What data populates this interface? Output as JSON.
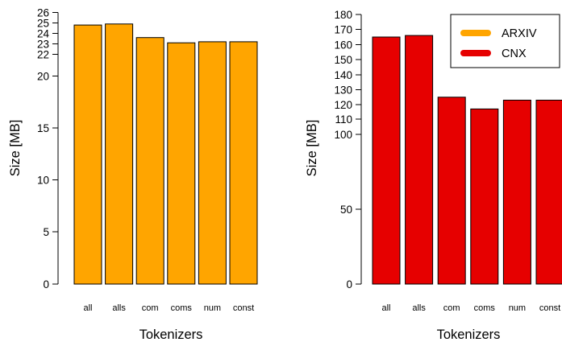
{
  "chart_data": [
    {
      "type": "bar",
      "xlabel": "Tokenizers",
      "ylabel": "Size [MB]",
      "categories": [
        "all",
        "alls",
        "com",
        "coms",
        "num",
        "const"
      ],
      "values": [
        24.8,
        24.9,
        23.6,
        23.1,
        23.2,
        23.2
      ],
      "yticks": [
        0,
        5,
        10,
        15,
        20,
        22,
        23,
        24,
        25,
        26
      ],
      "ylim": [
        0,
        26
      ],
      "bar_color": "#FFA500",
      "grid": false
    },
    {
      "type": "bar",
      "xlabel": "Tokenizers",
      "ylabel": "Size [MB]",
      "categories": [
        "all",
        "alls",
        "com",
        "coms",
        "num",
        "const"
      ],
      "values": [
        165,
        166,
        125,
        117,
        123,
        123
      ],
      "yticks": [
        0,
        50,
        100,
        110,
        120,
        130,
        140,
        150,
        160,
        170,
        180
      ],
      "ylim": [
        0,
        180
      ],
      "bar_color": "#E60000",
      "grid": false,
      "legend": {
        "position": "top-right",
        "items": [
          {
            "label": "ARXIV",
            "color": "#FFA500"
          },
          {
            "label": "CNX",
            "color": "#E60000"
          }
        ]
      }
    }
  ]
}
